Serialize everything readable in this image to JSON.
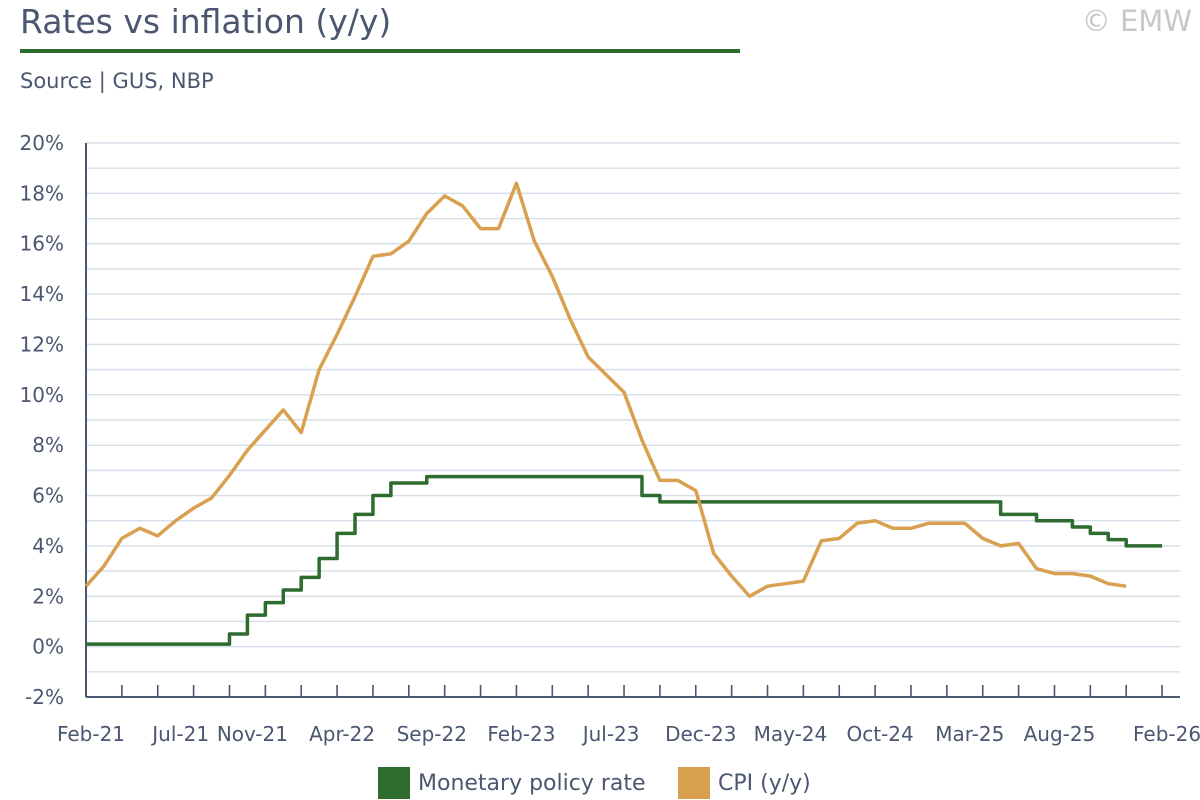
{
  "header": {
    "title": "Rates vs inflation (y/y)",
    "subtitle": "Source | GUS, NBP",
    "copyright": "© EMW"
  },
  "colors": {
    "policy": "#2e6b2e",
    "cpi": "#d9a050",
    "grid": "#d5dde8",
    "axis": "#4b5670"
  },
  "chart_data": {
    "type": "line",
    "title": "Rates vs inflation (y/y)",
    "xlabel": "",
    "ylabel": "",
    "ylim": [
      -2,
      20
    ],
    "y_ticks": [
      -2,
      0,
      2,
      4,
      6,
      8,
      10,
      12,
      14,
      16,
      18,
      20
    ],
    "y_tick_labels": [
      "-2%",
      "0%",
      "2%",
      "4%",
      "6%",
      "8%",
      "10%",
      "12%",
      "14%",
      "16%",
      "18%",
      "20%"
    ],
    "x_start": "2021-02",
    "x_end": "2026-02",
    "x_tick_labels": [
      {
        "label": "Feb-21",
        "month": "2021-02"
      },
      {
        "label": "Jul-21",
        "month": "2021-07"
      },
      {
        "label": "Nov-21",
        "month": "2021-11"
      },
      {
        "label": "Apr-22",
        "month": "2022-04"
      },
      {
        "label": "Sep-22",
        "month": "2022-09"
      },
      {
        "label": "Feb-23",
        "month": "2023-02"
      },
      {
        "label": "Jul-23",
        "month": "2023-07"
      },
      {
        "label": "Dec-23",
        "month": "2023-12"
      },
      {
        "label": "May-24",
        "month": "2024-05"
      },
      {
        "label": "Oct-24",
        "month": "2024-10"
      },
      {
        "label": "Mar-25",
        "month": "2025-03"
      },
      {
        "label": "Aug-25",
        "month": "2025-08"
      },
      {
        "label": "Feb-26",
        "month": "2026-02"
      }
    ],
    "legend": "bottom",
    "grid": true,
    "series": [
      {
        "name": "Monetary policy rate",
        "step": true,
        "color": "#2e6b2e",
        "points": [
          [
            "2021-02",
            0.1
          ],
          [
            "2021-10",
            0.5
          ],
          [
            "2021-11",
            1.25
          ],
          [
            "2021-12",
            1.75
          ],
          [
            "2022-01",
            2.25
          ],
          [
            "2022-02",
            2.75
          ],
          [
            "2022-03",
            3.5
          ],
          [
            "2022-04",
            4.5
          ],
          [
            "2022-05",
            5.25
          ],
          [
            "2022-06",
            6.0
          ],
          [
            "2022-07",
            6.5
          ],
          [
            "2022-09",
            6.75
          ],
          [
            "2023-09",
            6.0
          ],
          [
            "2023-10",
            5.75
          ],
          [
            "2025-05",
            5.25
          ],
          [
            "2025-07",
            5.0
          ],
          [
            "2025-09",
            4.75
          ],
          [
            "2025-10",
            4.5
          ],
          [
            "2025-11",
            4.25
          ],
          [
            "2025-12",
            4.0
          ],
          [
            "2026-02",
            4.0
          ]
        ]
      },
      {
        "name": "CPI (y/y)",
        "step": false,
        "color": "#d9a050",
        "points": [
          [
            "2021-02",
            2.4
          ],
          [
            "2021-03",
            3.2
          ],
          [
            "2021-04",
            4.3
          ],
          [
            "2021-05",
            4.7
          ],
          [
            "2021-06",
            4.4
          ],
          [
            "2021-07",
            5.0
          ],
          [
            "2021-08",
            5.5
          ],
          [
            "2021-09",
            5.9
          ],
          [
            "2021-10",
            6.8
          ],
          [
            "2021-11",
            7.8
          ],
          [
            "2021-12",
            8.6
          ],
          [
            "2022-01",
            9.4
          ],
          [
            "2022-02",
            8.5
          ],
          [
            "2022-03",
            11.0
          ],
          [
            "2022-04",
            12.4
          ],
          [
            "2022-05",
            13.9
          ],
          [
            "2022-06",
            15.5
          ],
          [
            "2022-07",
            15.6
          ],
          [
            "2022-08",
            16.1
          ],
          [
            "2022-09",
            17.2
          ],
          [
            "2022-10",
            17.9
          ],
          [
            "2022-11",
            17.5
          ],
          [
            "2022-12",
            16.6
          ],
          [
            "2023-01",
            16.6
          ],
          [
            "2023-02",
            18.4
          ],
          [
            "2023-03",
            16.1
          ],
          [
            "2023-04",
            14.7
          ],
          [
            "2023-05",
            13.0
          ],
          [
            "2023-06",
            11.5
          ],
          [
            "2023-07",
            10.8
          ],
          [
            "2023-08",
            10.1
          ],
          [
            "2023-09",
            8.2
          ],
          [
            "2023-10",
            6.6
          ],
          [
            "2023-11",
            6.6
          ],
          [
            "2023-12",
            6.2
          ],
          [
            "2024-01",
            3.7
          ],
          [
            "2024-02",
            2.8
          ],
          [
            "2024-03",
            2.0
          ],
          [
            "2024-04",
            2.4
          ],
          [
            "2024-05",
            2.5
          ],
          [
            "2024-06",
            2.6
          ],
          [
            "2024-07",
            4.2
          ],
          [
            "2024-08",
            4.3
          ],
          [
            "2024-09",
            4.9
          ],
          [
            "2024-10",
            5.0
          ],
          [
            "2024-11",
            4.7
          ],
          [
            "2024-12",
            4.7
          ],
          [
            "2025-01",
            4.9
          ],
          [
            "2025-02",
            4.9
          ],
          [
            "2025-03",
            4.9
          ],
          [
            "2025-04",
            4.3
          ],
          [
            "2025-05",
            4.0
          ],
          [
            "2025-06",
            4.1
          ],
          [
            "2025-07",
            3.1
          ],
          [
            "2025-08",
            2.9
          ],
          [
            "2025-09",
            2.9
          ],
          [
            "2025-10",
            2.8
          ],
          [
            "2025-11",
            2.5
          ],
          [
            "2025-12",
            2.4
          ]
        ]
      }
    ]
  }
}
